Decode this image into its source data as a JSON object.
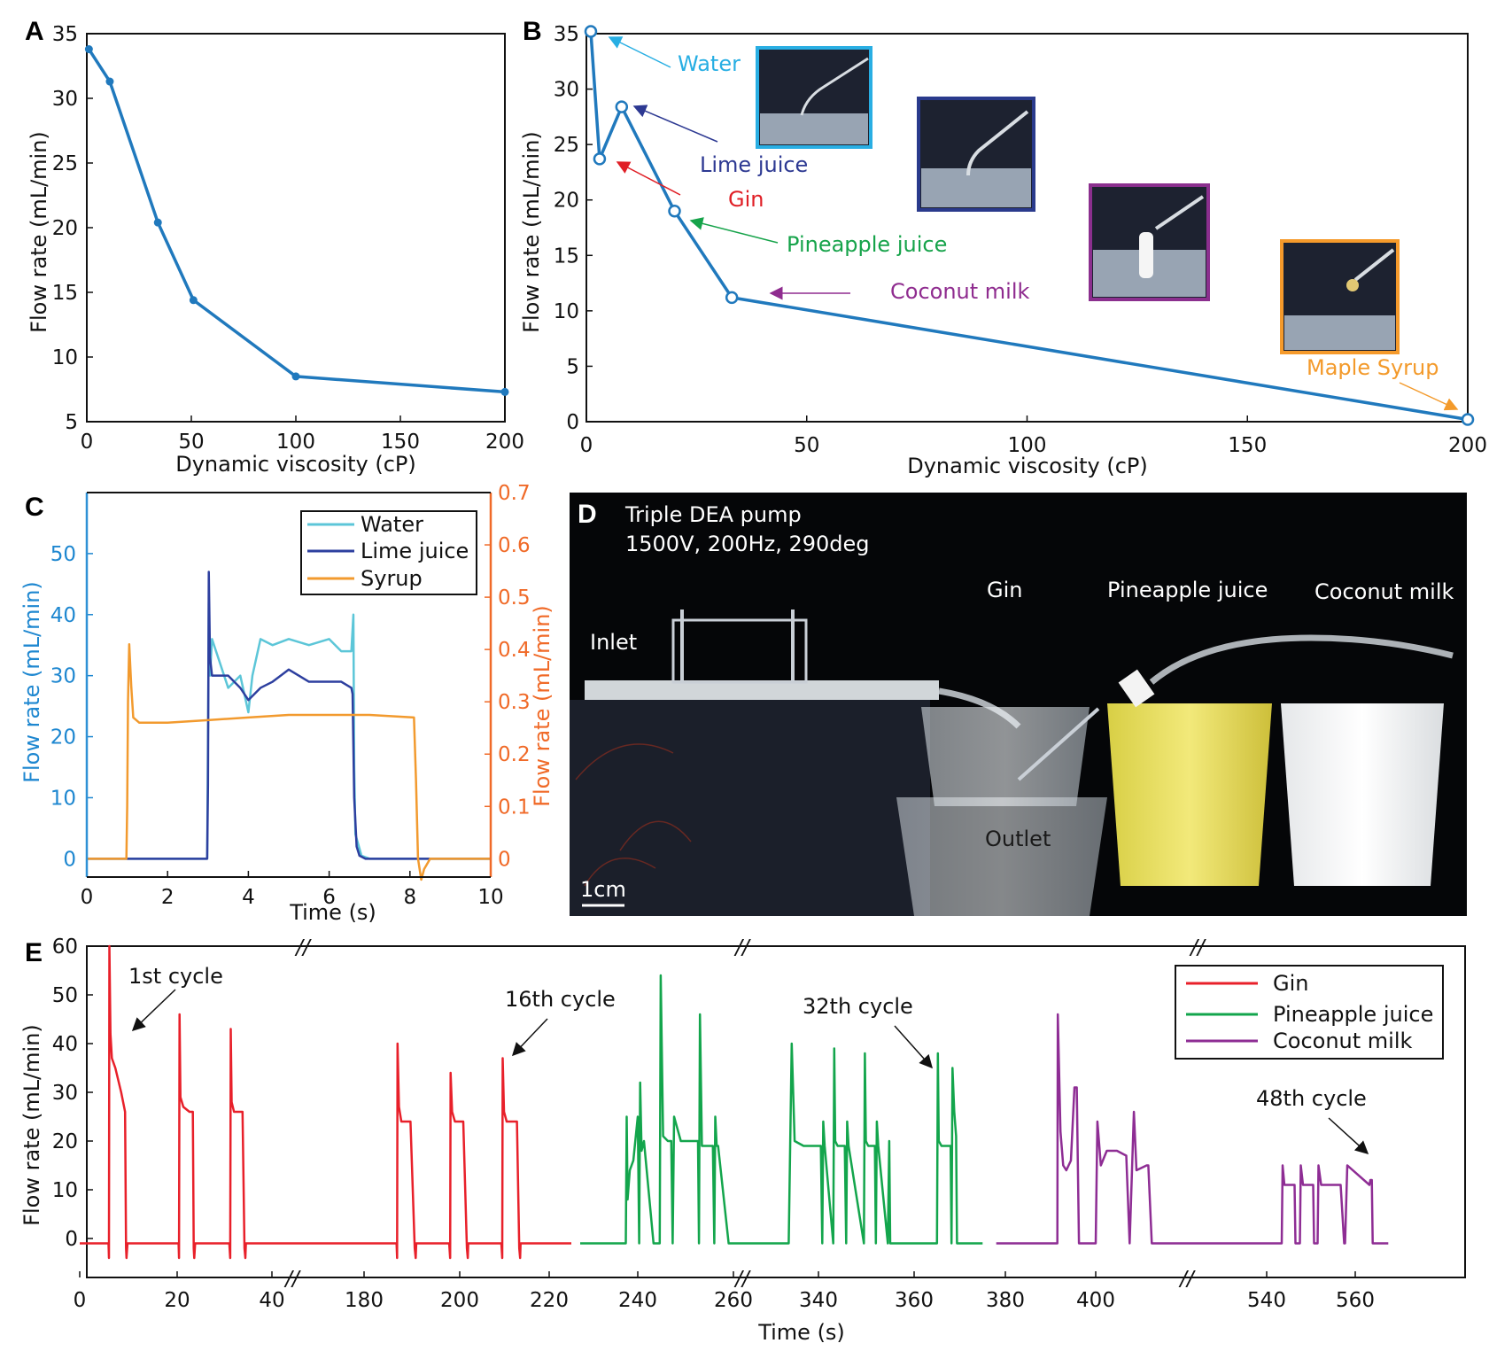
{
  "panels": {
    "A": "A",
    "B": "B",
    "C": "C",
    "D": "D",
    "E": "E"
  },
  "colors": {
    "blue": "#2079bd",
    "water": "#5cc6d8",
    "lime": "#2d3f9f",
    "syrup": "#f29a2e",
    "gin": "#e8202a",
    "pineapple": "#13a54c",
    "coconut": "#8e2d94",
    "water_label": "#27aee3",
    "lime_label": "#2d3992",
    "gin_label": "#e01f26",
    "pine_label": "#16a34a",
    "coco_label": "#8f2c8f",
    "syrup_label": "#f39a2b",
    "photo_water": "#29aee3",
    "photo_lime": "#2a3a8c",
    "photo_coco": "#8b2f8e",
    "photo_syrup": "#f59a2b",
    "right_axis": "#f06a28",
    "left_axis_c": "#1e87d0"
  },
  "chart_data": [
    {
      "id": "A",
      "type": "line",
      "xlabel": "Dynamic viscosity (cP)",
      "ylabel": "Flow rate (mL/min)",
      "xlim": [
        0,
        200
      ],
      "ylim": [
        5,
        35
      ],
      "xticks": [
        0,
        50,
        100,
        150,
        200
      ],
      "yticks": [
        5,
        10,
        15,
        20,
        25,
        30,
        35
      ],
      "x": [
        1,
        11,
        34,
        51,
        100,
        200
      ],
      "y": [
        33.8,
        31.3,
        20.4,
        14.4,
        8.5,
        7.3
      ]
    },
    {
      "id": "B",
      "type": "line",
      "xlabel": "Dynamic viscosity (cP)",
      "ylabel": "Flow rate (mL/min)",
      "xlim": [
        0,
        200
      ],
      "ylim": [
        0,
        35
      ],
      "xticks": [
        0,
        50,
        100,
        150,
        200
      ],
      "yticks": [
        0,
        5,
        10,
        15,
        20,
        25,
        30,
        35
      ],
      "x": [
        1,
        3,
        8,
        20,
        33,
        200
      ],
      "y": [
        35.2,
        23.7,
        28.4,
        19.0,
        11.2,
        0.2
      ],
      "labels": [
        "Water",
        "Gin",
        "Lime juice",
        "Pineapple juice",
        "Coconut milk",
        "Maple Syrup"
      ]
    },
    {
      "id": "C",
      "type": "line",
      "xlabel": "Time (s)",
      "ylabel_left": "Flow rate (mL/min)",
      "ylabel_right": "Flow rate (mL/min)",
      "xlim": [
        0,
        10
      ],
      "ylim_left": [
        -3,
        60
      ],
      "ylim_right": [
        -0.035,
        0.7
      ],
      "xticks": [
        0,
        2,
        4,
        6,
        8,
        10
      ],
      "yticks_left": [
        0,
        10,
        20,
        30,
        40,
        50
      ],
      "yticks_right": [
        "0",
        "0.1",
        "0.2",
        "0.3",
        "0.4",
        "0.5",
        "0.6",
        "0.7"
      ],
      "series": [
        {
          "name": "Water",
          "axis": "left",
          "x": [
            0,
            2.98,
            3.0,
            3.02,
            3.05,
            3.1,
            3.3,
            3.5,
            3.8,
            4.0,
            4.1,
            4.3,
            4.6,
            5.0,
            5.5,
            6.0,
            6.3,
            6.55,
            6.6,
            6.62,
            6.65,
            6.8,
            7.0,
            10
          ],
          "y": [
            0,
            0,
            20,
            42,
            30,
            36,
            32,
            28,
            30,
            24,
            30,
            36,
            35,
            36,
            35,
            36,
            34,
            34,
            40,
            15,
            4,
            0.5,
            0,
            0
          ]
        },
        {
          "name": "Lime juice",
          "axis": "left",
          "x": [
            0,
            2.98,
            3.0,
            3.02,
            3.05,
            3.1,
            3.5,
            3.8,
            4.0,
            4.3,
            4.6,
            5.0,
            5.5,
            6.0,
            6.3,
            6.55,
            6.58,
            6.62,
            6.68,
            6.75,
            6.9,
            10
          ],
          "y": [
            0,
            0,
            12,
            47,
            33,
            30,
            30,
            28,
            26,
            28,
            29,
            31,
            29,
            29,
            29,
            28,
            27,
            10,
            2,
            0.5,
            0,
            0
          ]
        },
        {
          "name": "Syrup",
          "axis": "right",
          "x": [
            0,
            0.98,
            1.0,
            1.02,
            1.05,
            1.1,
            1.15,
            1.3,
            1.6,
            2.0,
            3.0,
            4.0,
            5.0,
            6.0,
            7.0,
            8.1,
            8.15,
            8.2,
            8.28,
            8.35,
            8.5,
            8.8,
            9.2,
            10
          ],
          "y": [
            0,
            0,
            0.1,
            0.3,
            0.41,
            0.33,
            0.27,
            0.26,
            0.26,
            0.26,
            0.265,
            0.27,
            0.275,
            0.275,
            0.275,
            0.27,
            0.15,
            0.0,
            -0.04,
            -0.02,
            0.0,
            0.0,
            0.0,
            0.0
          ]
        }
      ],
      "legend": [
        "Water",
        "Lime juice",
        "Syrup"
      ]
    },
    {
      "id": "E",
      "type": "line",
      "xlabel": "Time (s)",
      "ylabel": "Flow rate (mL/min)",
      "ylim": [
        -8,
        60
      ],
      "yticks": [
        0,
        10,
        20,
        30,
        40,
        50,
        60
      ],
      "xticks": [
        "0",
        "20",
        "40",
        "180",
        "200",
        "220",
        "240",
        "260",
        "340",
        "360",
        "380",
        "400",
        "540",
        "560"
      ],
      "axis_break_mark": "//",
      "legend": [
        "Gin",
        "Pineapple juice",
        "Coconut milk"
      ],
      "series": [
        {
          "name": "Gin",
          "segments": [
            {
              "x": [
                0,
                5.9,
                6.0,
                6.1,
                6.3,
                6.6,
                7.3,
                8.5,
                9.3,
                9.5,
                9.6,
                9.8,
                10.2,
                20.3,
                20.4,
                20.5,
                20.7,
                21.3,
                22.6,
                23.3,
                23.5,
                23.6,
                23.8,
                24.2,
                31.0,
                31.2,
                31.3,
                31.5,
                32.0,
                33.8,
                34.2,
                34.4,
                34.5,
                34.8,
                35.3,
                186.8,
                186.9,
                187.0,
                187.3,
                187.8,
                189.7,
                190.6,
                190.8,
                190.9,
                191.2,
                191.6,
                197.8,
                198.0,
                198.1,
                198.4,
                199.0,
                200.8,
                201.6,
                201.8,
                201.9,
                202.2,
                202.6,
                209.3,
                209.5,
                209.6,
                209.9,
                210.5,
                212.8,
                213.3,
                213.5,
                213.6,
                213.9,
                214.4,
                225
              ],
              "y": [
                -1,
                -1,
                -4,
                60,
                42,
                37,
                35,
                30,
                26,
                -2,
                -4,
                -1,
                -1,
                -1,
                -4,
                46,
                29,
                27,
                26,
                26,
                -2,
                -4,
                -1,
                -1,
                -1,
                -4,
                43,
                28,
                26,
                26,
                -2,
                -4,
                -1,
                -1,
                -1,
                -1,
                -4,
                40,
                27,
                24,
                24,
                -2,
                -4,
                -1,
                -1,
                -1,
                -1,
                -4,
                34,
                26,
                24,
                24,
                -2,
                -4,
                -1,
                -1,
                -1,
                -1,
                -4,
                37,
                26,
                24,
                24,
                -2,
                -4,
                -1,
                -1,
                -1,
                -1
              ]
            }
          ]
        },
        {
          "name": "Pineapple juice",
          "segments": [
            {
              "x": [
                227,
                237.3,
                237.5,
                237.7,
                238.2,
                239.0,
                240.0,
                240.3,
                240.5,
                240.8,
                241.3,
                243.3,
                244.6,
                244.8,
                245.3,
                246.3,
                247.0,
                247.3,
                247.6,
                249.0,
                252.6,
                252.8,
                253.0,
                253.4,
                254.5,
                255.7,
                256.0,
                256.2,
                256.5,
                256.8,
                259,
                338.0,
                338.2,
                338.4,
                339.0,
                340.5,
                340.8,
                341.0,
                341.3,
                343.1,
                343.3,
                343.5,
                344.0,
                345.5,
                345.8,
                346.0,
                346.3,
                349.5,
                349.7,
                349.9,
                350.4,
                351.8,
                352.0,
                352.2,
                352.5,
                354.5,
                354.8,
                355.0,
                355.5,
                365.0,
                365.2,
                365.4,
                366.0,
                368.0,
                368.2,
                368.4,
                368.8,
                369.2,
                369.4,
                369.6,
                369.8,
                370.0,
                375
              ],
              "y": [
                -1,
                -1,
                25,
                8,
                14,
                16,
                25,
                -1,
                32,
                18,
                20,
                -1,
                -1,
                54,
                21,
                20,
                20,
                -1,
                25,
                20,
                20,
                -1,
                46,
                19,
                19,
                19,
                -1,
                25,
                19,
                19,
                -1,
                -1,
                40,
                20,
                19,
                19,
                -1,
                24,
                19,
                -1,
                39,
                20,
                19,
                19,
                -1,
                24,
                19,
                -1,
                38,
                20,
                19,
                19,
                -1,
                24,
                19,
                -1,
                20,
                -1,
                -1,
                -1,
                38,
                20,
                19,
                19,
                -1,
                35,
                26,
                21,
                -1,
                -1,
                -1,
                -1,
                -1
              ]
            }
          ]
        },
        {
          "name": "Coconut milk",
          "segments": [
            {
              "x": [
                378,
                391.5,
                391.6,
                392.2,
                392.8,
                393.5,
                394.5,
                395.3,
                395.8,
                396.3,
                396.6,
                396.8,
                400.0,
                400.2,
                400.6,
                401.3,
                402.5,
                403.6,
                404.0,
                404.5,
                404.8,
                406.0,
                406.2,
                406.6,
                407.3,
                408.2,
                409.3,
                409.5,
                410,
                543.4,
                543.6,
                544.0,
                546.3,
                546.5,
                547.5,
                547.7,
                548.2,
                550.5,
                550.7,
                551.5,
                551.7,
                552.3,
                556.5,
                556.7,
                557.5,
                557.7,
                558.2,
                563,
                563.2,
                563.5,
                563.7,
                564.2,
                567
              ],
              "y": [
                -1,
                -1,
                46,
                22,
                15,
                14,
                16,
                31,
                31,
                -1,
                -1,
                -1,
                -1,
                24,
                15,
                18,
                18,
                17,
                -1,
                26,
                14,
                15,
                15,
                -1,
                -1,
                -1,
                -1,
                -1,
                -1,
                -1,
                15,
                11,
                11,
                -1,
                -1,
                15,
                11,
                11,
                -1,
                -1,
                15,
                11,
                11,
                11,
                -1,
                -1,
                15,
                11,
                12,
                12,
                -1,
                -1,
                -1
              ]
            }
          ]
        }
      ],
      "annotations": [
        "1st cycle",
        "16th cycle",
        "32th cycle",
        "48th cycle"
      ]
    }
  ],
  "panelB_labels": {
    "water": "Water",
    "lime": "Lime juice",
    "gin": "Gin",
    "pineapple": "Pineapple juice",
    "coconut": "Coconut milk",
    "syrup": "Maple Syrup"
  },
  "panelD": {
    "title_line1": "Triple DEA pump",
    "title_line2": "1500V, 200Hz, 290deg",
    "gin": "Gin",
    "pineapple": "Pineapple juice",
    "coconut": "Coconut milk",
    "inlet": "Inlet",
    "outlet": "Outlet",
    "scale": "1cm"
  },
  "panelE_annotations": {
    "c1": "1st cycle",
    "c16": "16th cycle",
    "c32": "32th cycle",
    "c48": "48th cycle"
  }
}
